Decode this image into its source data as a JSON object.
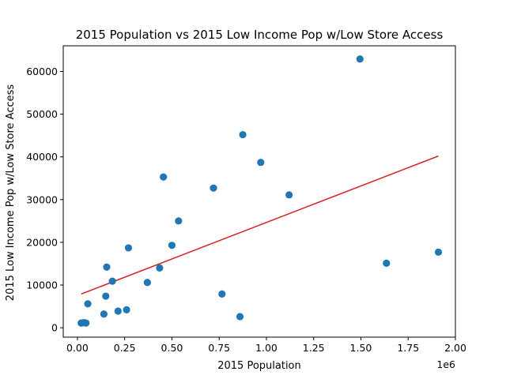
{
  "chart_data": {
    "type": "scatter",
    "title": "2015 Population vs 2015 Low Income Pop w/Low Store Access",
    "xlabel": "2015 Population",
    "ylabel": "2015 Low Income Pop w/Low Store Access",
    "x_offset_label": "1e6",
    "xlim": [
      -0.075,
      2.0
    ],
    "ylim": [
      -2200,
      66000
    ],
    "x_ticks": [
      0.0,
      0.25,
      0.5,
      0.75,
      1.0,
      1.25,
      1.5,
      1.75,
      2.0
    ],
    "x_tick_labels": [
      "0.00",
      "0.25",
      "0.50",
      "0.75",
      "1.00",
      "1.25",
      "1.50",
      "1.75",
      "2.00"
    ],
    "y_ticks": [
      0,
      10000,
      20000,
      30000,
      40000,
      50000,
      60000
    ],
    "y_tick_labels": [
      "0",
      "10000",
      "20000",
      "30000",
      "40000",
      "50000",
      "60000"
    ],
    "grid": false,
    "legend": "none",
    "series": [
      {
        "marker_color": "#1f77b4",
        "points": [
          [
            0.02,
            1100
          ],
          [
            0.035,
            1200
          ],
          [
            0.045,
            1100
          ],
          [
            0.055,
            5600
          ],
          [
            0.14,
            3200
          ],
          [
            0.15,
            7400
          ],
          [
            0.155,
            14200
          ],
          [
            0.185,
            10900
          ],
          [
            0.215,
            3900
          ],
          [
            0.26,
            4200
          ],
          [
            0.27,
            18700
          ],
          [
            0.37,
            10600
          ],
          [
            0.435,
            14000
          ],
          [
            0.455,
            35300
          ],
          [
            0.5,
            19300
          ],
          [
            0.535,
            25000
          ],
          [
            0.72,
            32700
          ],
          [
            0.765,
            7900
          ],
          [
            0.86,
            2600
          ],
          [
            0.875,
            45200
          ],
          [
            0.97,
            38700
          ],
          [
            1.12,
            31100
          ],
          [
            1.495,
            62900
          ],
          [
            1.635,
            15100
          ],
          [
            1.91,
            17700
          ]
        ]
      }
    ],
    "trendline": {
      "color": "#d62728",
      "x": [
        0.02,
        1.91
      ],
      "y": [
        7900,
        40200
      ]
    }
  }
}
